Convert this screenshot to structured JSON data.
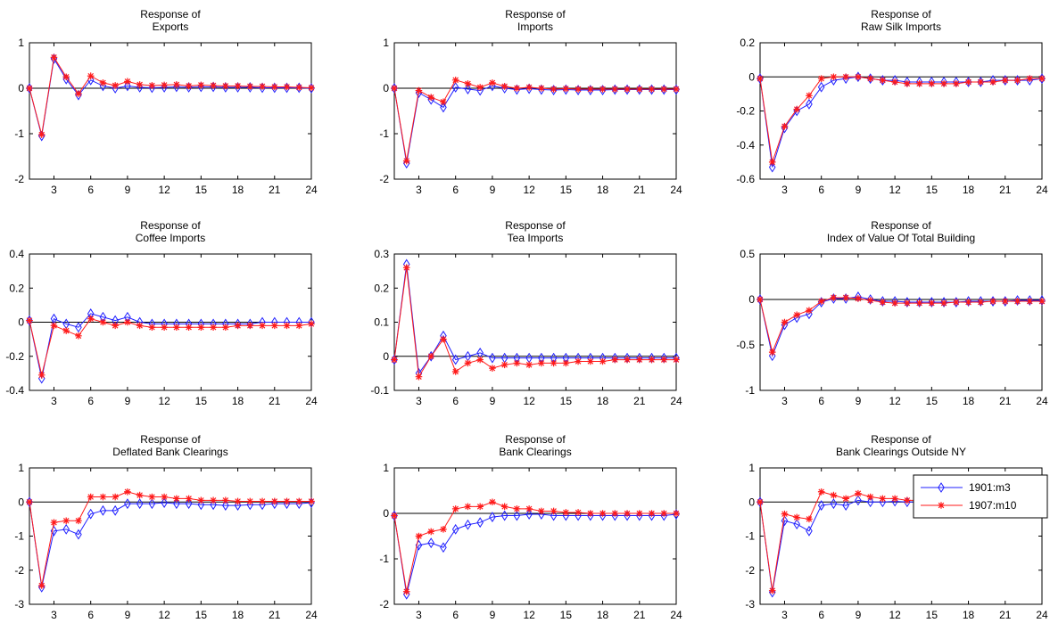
{
  "chart_data": [
    {
      "type": "line",
      "title": [
        "Response of",
        "Exports"
      ],
      "x": [
        1,
        2,
        3,
        4,
        5,
        6,
        7,
        8,
        9,
        10,
        11,
        12,
        13,
        14,
        15,
        16,
        17,
        18,
        19,
        20,
        21,
        22,
        23,
        24
      ],
      "xticks": [
        3,
        6,
        9,
        12,
        15,
        18,
        21,
        24
      ],
      "ylim": [
        -2,
        1
      ],
      "yticks": [
        -2,
        -1,
        0,
        1
      ],
      "series": [
        {
          "values": [
            0,
            -1.05,
            0.65,
            0.2,
            -0.15,
            0.18,
            0.05,
            0.0,
            0.05,
            0.02,
            0.01,
            0.02,
            0.03,
            0.02,
            0.03,
            0.03,
            0.02,
            0.02,
            0.02,
            0.01,
            0.01,
            0.01,
            0.01,
            0.0
          ]
        },
        {
          "values": [
            0,
            -1.02,
            0.68,
            0.25,
            -0.12,
            0.27,
            0.12,
            0.06,
            0.15,
            0.08,
            0.06,
            0.07,
            0.08,
            0.05,
            0.07,
            0.06,
            0.05,
            0.05,
            0.04,
            0.04,
            0.03,
            0.03,
            0.02,
            0.01
          ]
        }
      ]
    },
    {
      "type": "line",
      "title": [
        "Response of",
        "Imports"
      ],
      "x": [
        1,
        2,
        3,
        4,
        5,
        6,
        7,
        8,
        9,
        10,
        11,
        12,
        13,
        14,
        15,
        16,
        17,
        18,
        19,
        20,
        21,
        22,
        23,
        24
      ],
      "xticks": [
        3,
        6,
        9,
        12,
        15,
        18,
        21,
        24
      ],
      "ylim": [
        -2,
        1
      ],
      "yticks": [
        -2,
        -1,
        0,
        1
      ],
      "series": [
        {
          "values": [
            0,
            -1.65,
            -0.1,
            -0.25,
            -0.42,
            0.02,
            -0.02,
            -0.05,
            0.05,
            0.0,
            -0.03,
            -0.01,
            -0.03,
            -0.04,
            -0.03,
            -0.04,
            -0.04,
            -0.04,
            -0.03,
            -0.03,
            -0.03,
            -0.03,
            -0.03,
            -0.03
          ]
        },
        {
          "values": [
            0,
            -1.6,
            -0.05,
            -0.2,
            -0.3,
            0.18,
            0.1,
            0.02,
            0.12,
            0.04,
            0.0,
            0.02,
            0.0,
            -0.02,
            -0.01,
            -0.02,
            -0.02,
            -0.02,
            -0.02,
            -0.02,
            -0.02,
            -0.02,
            -0.02,
            -0.02
          ]
        }
      ]
    },
    {
      "type": "line",
      "title": [
        "Response of",
        "Raw Silk Imports"
      ],
      "x": [
        1,
        2,
        3,
        4,
        5,
        6,
        7,
        8,
        9,
        10,
        11,
        12,
        13,
        14,
        15,
        16,
        17,
        18,
        19,
        20,
        21,
        22,
        23,
        24
      ],
      "xticks": [
        3,
        6,
        9,
        12,
        15,
        18,
        21,
        24
      ],
      "ylim": [
        -0.6,
        0.2
      ],
      "yticks": [
        -0.6,
        -0.4,
        -0.2,
        0,
        0.2
      ],
      "series": [
        {
          "values": [
            -0.01,
            -0.53,
            -0.3,
            -0.2,
            -0.16,
            -0.06,
            -0.02,
            -0.01,
            0.0,
            -0.01,
            -0.02,
            -0.02,
            -0.03,
            -0.03,
            -0.03,
            -0.03,
            -0.03,
            -0.03,
            -0.03,
            -0.02,
            -0.02,
            -0.02,
            -0.02,
            -0.01
          ]
        },
        {
          "values": [
            -0.01,
            -0.5,
            -0.29,
            -0.19,
            -0.11,
            -0.01,
            0.0,
            0.0,
            0.0,
            -0.01,
            -0.02,
            -0.03,
            -0.04,
            -0.04,
            -0.04,
            -0.04,
            -0.04,
            -0.03,
            -0.03,
            -0.03,
            -0.02,
            -0.02,
            -0.01,
            -0.01
          ]
        }
      ]
    },
    {
      "type": "line",
      "title": [
        "Response of",
        "Coffee Imports"
      ],
      "x": [
        1,
        2,
        3,
        4,
        5,
        6,
        7,
        8,
        9,
        10,
        11,
        12,
        13,
        14,
        15,
        16,
        17,
        18,
        19,
        20,
        21,
        22,
        23,
        24
      ],
      "xticks": [
        3,
        6,
        9,
        12,
        15,
        18,
        21,
        24
      ],
      "ylim": [
        -0.4,
        0.4
      ],
      "yticks": [
        -0.4,
        -0.2,
        0,
        0.2,
        0.4
      ],
      "series": [
        {
          "values": [
            0.01,
            -0.33,
            0.02,
            -0.01,
            -0.03,
            0.05,
            0.03,
            0.01,
            0.03,
            0.0,
            -0.01,
            -0.01,
            -0.01,
            -0.01,
            -0.01,
            -0.01,
            -0.01,
            -0.01,
            -0.01,
            0.0,
            0.0,
            0.0,
            0.0,
            0.0
          ]
        },
        {
          "values": [
            0.01,
            -0.31,
            -0.02,
            -0.05,
            -0.08,
            0.02,
            0.0,
            -0.02,
            0.0,
            -0.02,
            -0.03,
            -0.03,
            -0.03,
            -0.03,
            -0.03,
            -0.03,
            -0.03,
            -0.02,
            -0.02,
            -0.02,
            -0.02,
            -0.02,
            -0.02,
            -0.01
          ]
        }
      ]
    },
    {
      "type": "line",
      "title": [
        "Response of",
        "Tea Imports"
      ],
      "x": [
        1,
        2,
        3,
        4,
        5,
        6,
        7,
        8,
        9,
        10,
        11,
        12,
        13,
        14,
        15,
        16,
        17,
        18,
        19,
        20,
        21,
        22,
        23,
        24
      ],
      "xticks": [
        3,
        6,
        9,
        12,
        15,
        18,
        21,
        24
      ],
      "ylim": [
        -0.1,
        0.3
      ],
      "yticks": [
        -0.1,
        0,
        0.1,
        0.2,
        0.3
      ],
      "series": [
        {
          "values": [
            -0.01,
            0.27,
            -0.05,
            0.0,
            0.06,
            -0.01,
            0.0,
            0.01,
            -0.005,
            -0.005,
            -0.005,
            -0.005,
            -0.005,
            -0.005,
            -0.005,
            -0.005,
            -0.005,
            -0.005,
            -0.005,
            -0.005,
            -0.005,
            -0.005,
            -0.005,
            -0.005
          ]
        },
        {
          "values": [
            -0.01,
            0.26,
            -0.06,
            0.0,
            0.05,
            -0.045,
            -0.02,
            -0.01,
            -0.035,
            -0.025,
            -0.02,
            -0.025,
            -0.02,
            -0.02,
            -0.02,
            -0.015,
            -0.015,
            -0.015,
            -0.01,
            -0.01,
            -0.01,
            -0.01,
            -0.01,
            -0.01
          ]
        }
      ]
    },
    {
      "type": "line",
      "title": [
        "Response of",
        "Index of Value Of Total Building"
      ],
      "x": [
        1,
        2,
        3,
        4,
        5,
        6,
        7,
        8,
        9,
        10,
        11,
        12,
        13,
        14,
        15,
        16,
        17,
        18,
        19,
        20,
        21,
        22,
        23,
        24
      ],
      "xticks": [
        3,
        6,
        9,
        12,
        15,
        18,
        21,
        24
      ],
      "ylim": [
        -1,
        0.5
      ],
      "yticks": [
        -1,
        -0.5,
        0,
        0.5
      ],
      "series": [
        {
          "values": [
            0,
            -0.62,
            -0.28,
            -0.2,
            -0.16,
            -0.03,
            0.01,
            0.01,
            0.03,
            0.0,
            -0.02,
            -0.02,
            -0.03,
            -0.03,
            -0.03,
            -0.03,
            -0.03,
            -0.02,
            -0.02,
            -0.02,
            -0.02,
            -0.01,
            -0.01,
            -0.01
          ]
        },
        {
          "values": [
            0,
            -0.58,
            -0.25,
            -0.17,
            -0.12,
            -0.02,
            0.02,
            0.02,
            0.01,
            -0.01,
            -0.03,
            -0.04,
            -0.04,
            -0.04,
            -0.04,
            -0.04,
            -0.03,
            -0.03,
            -0.03,
            -0.02,
            -0.02,
            -0.02,
            -0.02,
            -0.02
          ]
        }
      ]
    },
    {
      "type": "line",
      "title": [
        "Response of",
        "Deflated Bank Clearings"
      ],
      "x": [
        1,
        2,
        3,
        4,
        5,
        6,
        7,
        8,
        9,
        10,
        11,
        12,
        13,
        14,
        15,
        16,
        17,
        18,
        19,
        20,
        21,
        22,
        23,
        24
      ],
      "xticks": [
        3,
        6,
        9,
        12,
        15,
        18,
        21,
        24
      ],
      "ylim": [
        -3,
        1
      ],
      "yticks": [
        -3,
        -2,
        -1,
        0,
        1
      ],
      "series": [
        {
          "values": [
            0,
            -2.5,
            -0.85,
            -0.8,
            -0.95,
            -0.35,
            -0.25,
            -0.25,
            -0.05,
            -0.05,
            -0.05,
            -0.02,
            -0.05,
            -0.05,
            -0.08,
            -0.08,
            -0.1,
            -0.1,
            -0.08,
            -0.08,
            -0.05,
            -0.05,
            -0.05,
            -0.02
          ]
        },
        {
          "values": [
            0,
            -2.45,
            -0.6,
            -0.55,
            -0.55,
            0.15,
            0.15,
            0.15,
            0.3,
            0.2,
            0.15,
            0.15,
            0.1,
            0.1,
            0.05,
            0.05,
            0.05,
            0.02,
            0.02,
            0.02,
            0.02,
            0.02,
            0.02,
            0.02
          ]
        }
      ]
    },
    {
      "type": "line",
      "title": [
        "Response of",
        "Bank Clearings"
      ],
      "x": [
        1,
        2,
        3,
        4,
        5,
        6,
        7,
        8,
        9,
        10,
        11,
        12,
        13,
        14,
        15,
        16,
        17,
        18,
        19,
        20,
        21,
        22,
        23,
        24
      ],
      "xticks": [
        3,
        6,
        9,
        12,
        15,
        18,
        21,
        24
      ],
      "ylim": [
        -2,
        1
      ],
      "yticks": [
        -2,
        -1,
        0,
        1
      ],
      "series": [
        {
          "values": [
            -0.05,
            -1.78,
            -0.7,
            -0.65,
            -0.75,
            -0.35,
            -0.25,
            -0.2,
            -0.08,
            -0.05,
            -0.05,
            -0.02,
            -0.02,
            -0.05,
            -0.05,
            -0.05,
            -0.05,
            -0.05,
            -0.05,
            -0.05,
            -0.05,
            -0.05,
            -0.05,
            -0.02
          ]
        },
        {
          "values": [
            -0.05,
            -1.72,
            -0.5,
            -0.4,
            -0.35,
            0.1,
            0.15,
            0.15,
            0.25,
            0.15,
            0.1,
            0.1,
            0.05,
            0.05,
            0.02,
            0.02,
            0.0,
            0.0,
            0.0,
            0.0,
            0.0,
            0.0,
            0.0,
            0.0
          ]
        }
      ]
    },
    {
      "type": "line",
      "title": [
        "Response of",
        "Bank Clearings Outside NY"
      ],
      "x": [
        1,
        2,
        3,
        4,
        5,
        6,
        7,
        8,
        9,
        10,
        11,
        12,
        13,
        14,
        15,
        16,
        17,
        18,
        19,
        20,
        21,
        22,
        23,
        24
      ],
      "xticks": [
        3,
        6,
        9,
        12,
        15,
        18,
        21,
        24
      ],
      "ylim": [
        -3,
        1
      ],
      "yticks": [
        -3,
        -2,
        -1,
        0,
        1
      ],
      "legend": {
        "placement": "top-right",
        "entries": [
          "1901:m3",
          "1907:m10"
        ]
      },
      "series": [
        {
          "name": "1901:m3",
          "values": [
            0,
            -2.65,
            -0.55,
            -0.65,
            -0.85,
            -0.1,
            -0.05,
            -0.1,
            0.05,
            0.0,
            0.0,
            0.02,
            0.0,
            0.0,
            0.0,
            0.0,
            0.0,
            0.0,
            0.0,
            0.0,
            0.0,
            0.0,
            0.0,
            0.0
          ]
        },
        {
          "name": "1907:m10",
          "values": [
            0,
            -2.6,
            -0.35,
            -0.45,
            -0.5,
            0.3,
            0.2,
            0.1,
            0.25,
            0.15,
            0.1,
            0.1,
            0.05,
            0.05,
            0.02,
            0.02,
            0.0,
            0.0,
            0.0,
            0.0,
            0.0,
            0.0,
            0.0,
            0.0
          ]
        }
      ]
    }
  ],
  "styles": {
    "series_colors": [
      "#1f1fff",
      "#ff1a1a"
    ],
    "series_markers": [
      "diamond",
      "star"
    ],
    "axis_color": "#000000",
    "zero_line_color": "#000000"
  }
}
